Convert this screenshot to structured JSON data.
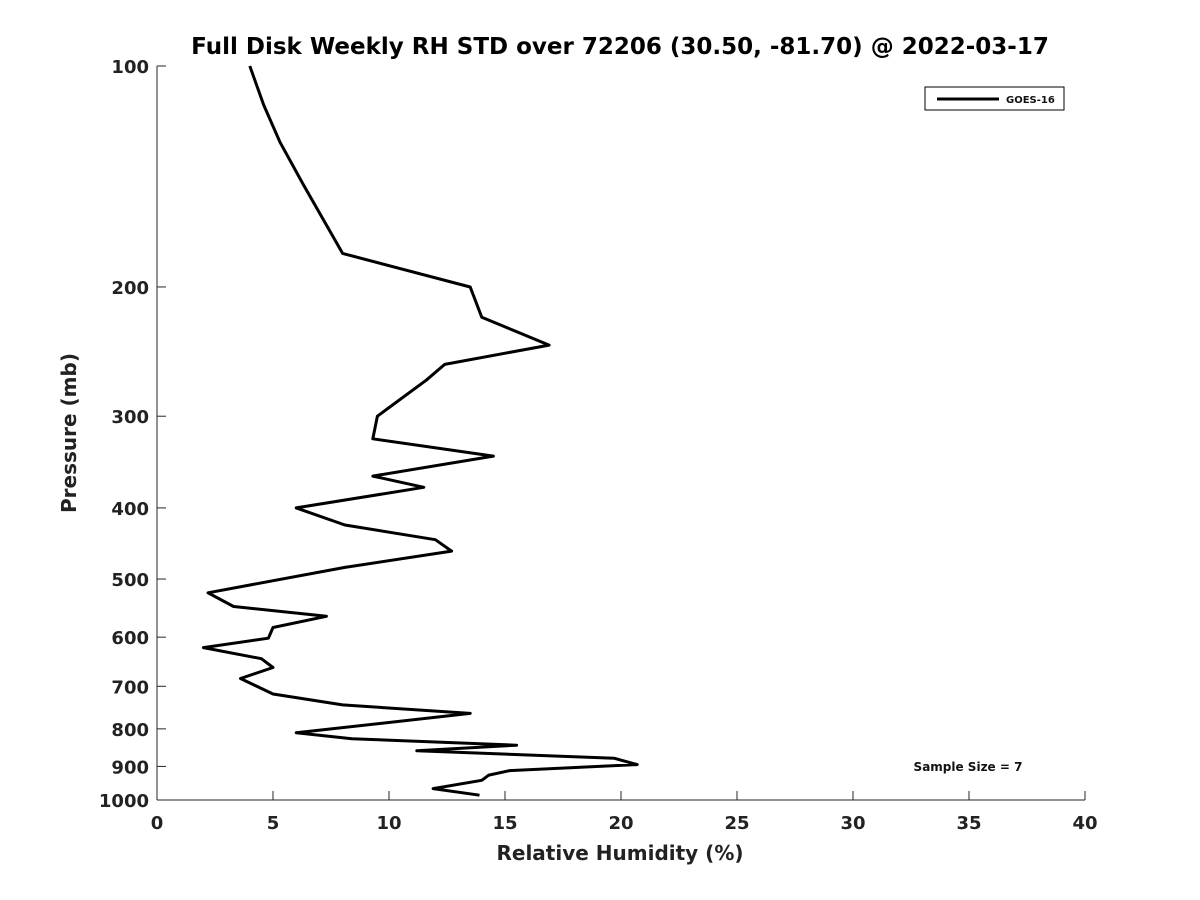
{
  "chart_data": {
    "type": "line",
    "title": "Full Disk Weekly RH STD over 72206 (30.50, -81.70) @ 2022-03-17",
    "xlabel": "Relative Humidity (%)",
    "ylabel": "Pressure (mb)",
    "xlim": [
      0,
      40
    ],
    "ylim": [
      100,
      1000
    ],
    "yscale": "log",
    "y_inverted": true,
    "xticks": [
      0,
      5,
      10,
      15,
      20,
      25,
      30,
      35,
      40
    ],
    "yticks": [
      100,
      200,
      300,
      400,
      500,
      600,
      700,
      800,
      900,
      1000
    ],
    "grid": false,
    "legend_position": "top-right",
    "series": [
      {
        "name": "GOES-16",
        "color": "#000000",
        "points": [
          [
            4.0,
            100
          ],
          [
            4.6,
            113
          ],
          [
            5.3,
            127
          ],
          [
            6.3,
            145
          ],
          [
            8.0,
            180
          ],
          [
            13.5,
            200
          ],
          [
            14.0,
            220
          ],
          [
            16.9,
            240
          ],
          [
            12.4,
            255
          ],
          [
            11.6,
            268
          ],
          [
            9.5,
            300
          ],
          [
            9.3,
            322
          ],
          [
            14.5,
            340
          ],
          [
            9.3,
            362
          ],
          [
            11.5,
            375
          ],
          [
            6.0,
            400
          ],
          [
            8.1,
            422
          ],
          [
            12.0,
            442
          ],
          [
            12.7,
            458
          ],
          [
            8.1,
            482
          ],
          [
            2.2,
            522
          ],
          [
            3.3,
            545
          ],
          [
            7.3,
            562
          ],
          [
            5.0,
            582
          ],
          [
            4.8,
            602
          ],
          [
            2.0,
            620
          ],
          [
            4.5,
            642
          ],
          [
            5.0,
            660
          ],
          [
            3.6,
            683
          ],
          [
            5.0,
            717
          ],
          [
            8.0,
            742
          ],
          [
            13.5,
            762
          ],
          [
            6.0,
            810
          ],
          [
            8.4,
            825
          ],
          [
            15.5,
            842
          ],
          [
            11.2,
            857
          ],
          [
            19.7,
            877
          ],
          [
            20.7,
            895
          ],
          [
            15.2,
            912
          ],
          [
            14.3,
            925
          ],
          [
            14.0,
            940
          ],
          [
            11.9,
            965
          ],
          [
            13.9,
            985
          ]
        ]
      }
    ],
    "annotation": "Sample Size = 7"
  }
}
